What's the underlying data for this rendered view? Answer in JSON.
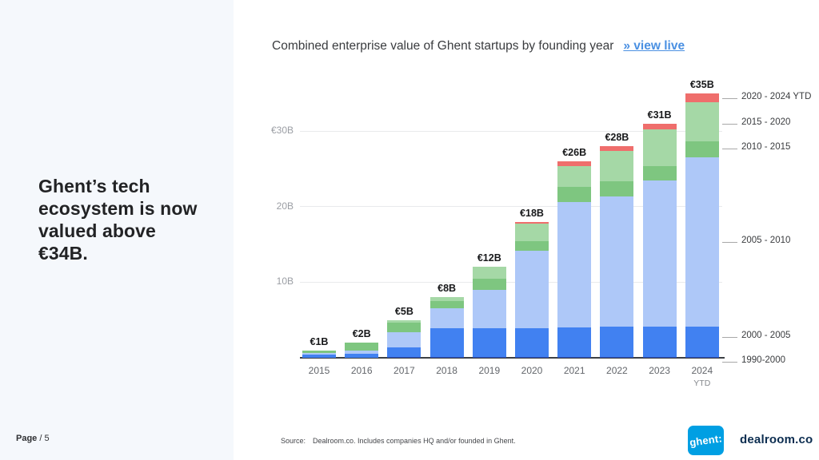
{
  "slide": {
    "headline": "Ghent’s tech ecosystem is now valued above €34B.",
    "page_label": "Page",
    "page_suffix": "/ 5"
  },
  "chart": {
    "title": "Combined enterprise value of Ghent startups by founding year",
    "view_live_label": "»  view live"
  },
  "chart_data": {
    "type": "bar",
    "stacked": true,
    "title": "Combined enterprise value of Ghent startups by founding year",
    "unit": "EUR billions",
    "categories": [
      "2015",
      "2016",
      "2017",
      "2018",
      "2019",
      "2020",
      "2021",
      "2022",
      "2023",
      "2024"
    ],
    "category_sublabels": [
      "",
      "",
      "",
      "",
      "",
      "",
      "",
      "",
      "",
      "YTD"
    ],
    "totals": [
      1,
      2,
      5,
      8,
      12,
      18,
      26,
      28,
      31,
      35
    ],
    "totals_labels": [
      "€1B",
      "€2B",
      "€5B",
      "€8B",
      "€12B",
      "€18B",
      "€26B",
      "€28B",
      "€31B",
      "€35B"
    ],
    "series": [
      {
        "name": "1990-2000",
        "color": "#2a4db7",
        "values": [
          0,
          0,
          0.1,
          0.1,
          0.1,
          0.1,
          0.1,
          0.1,
          0.1,
          0.1
        ]
      },
      {
        "name": "2000 - 2005",
        "color": "#4181f1",
        "values": [
          0.4,
          0.5,
          1.3,
          3.8,
          3.8,
          3.8,
          3.9,
          4.0,
          4.0,
          4.0
        ]
      },
      {
        "name": "2005 - 2010",
        "color": "#aec8f8",
        "values": [
          0.2,
          0.4,
          2.0,
          2.6,
          5.1,
          10.3,
          16.6,
          17.2,
          19.3,
          22.4
        ]
      },
      {
        "name": "2010 - 2015",
        "color": "#7ec680",
        "values": [
          0.4,
          1.1,
          1.3,
          1.0,
          1.5,
          1.2,
          2.0,
          2.1,
          2.0,
          2.1
        ]
      },
      {
        "name": "2015 - 2020",
        "color": "#a5d8a6",
        "values": [
          0,
          0,
          0.3,
          0.5,
          1.5,
          2.3,
          2.8,
          4.0,
          4.8,
          5.2
        ]
      },
      {
        "name": "2020 - 2024 YTD",
        "color": "#ef6e6c",
        "values": [
          0,
          0,
          0,
          0,
          0,
          0.3,
          0.6,
          0.6,
          0.8,
          1.2
        ]
      }
    ],
    "y_axis": {
      "ticks": [
        {
          "label": "€30B",
          "value": 30
        },
        {
          "label": "20B",
          "value": 20
        },
        {
          "label": "10B",
          "value": 10
        }
      ],
      "range": [
        0,
        37
      ],
      "grid": true
    },
    "legend": [
      "2020 - 2024 YTD",
      "2015 - 2020",
      "2010 - 2015",
      "2005 - 2010",
      "2000 - 2005",
      "1990-2000"
    ],
    "legend_position": "right"
  },
  "footer": {
    "source_label": "Source:",
    "source_text": "Dealroom.co. Includes companies HQ and/or founded in Ghent.",
    "ghent_logo_text": "ghent:",
    "dealroom_logo_text": "dealroom.co"
  }
}
